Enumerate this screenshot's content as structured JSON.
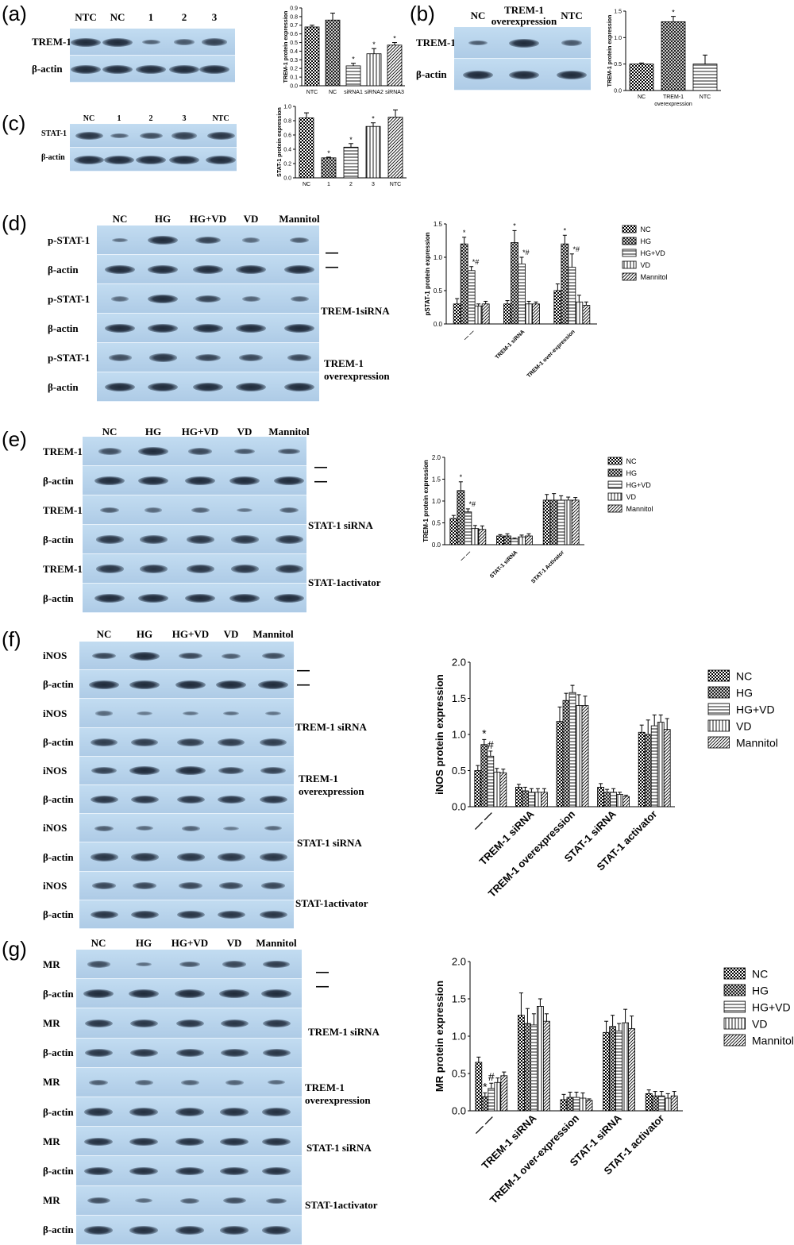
{
  "panels": {
    "a": {
      "letter": "(a)",
      "lanes": [
        "NTC",
        "NC",
        "1",
        "2",
        "3"
      ],
      "rows": [
        "TREM-1",
        "β-actin"
      ]
    },
    "b": {
      "letter": "(b)",
      "lanes": [
        "NC",
        "TREM-1 overexpression",
        "NTC"
      ],
      "rows": [
        "TREM-1",
        "β-actin"
      ]
    },
    "c": {
      "letter": "(c)",
      "lanes": [
        "NC",
        "1",
        "2",
        "3",
        "NTC"
      ],
      "rows": [
        "STAT-1",
        "β-actin"
      ]
    },
    "d": {
      "letter": "(d)",
      "lanes": [
        "NC",
        "HG",
        "HG+VD",
        "VD",
        "Mannitol"
      ],
      "rows": [
        "p-STAT-1",
        "β-actin",
        "p-STAT-1",
        "β-actin",
        "p-STAT-1",
        "β-actin"
      ],
      "groups": [
        "— —",
        "TREM-1siRNA",
        "TREM-1 overexpression"
      ]
    },
    "e": {
      "letter": "(e)",
      "lanes": [
        "NC",
        "HG",
        "HG+VD",
        "VD",
        "Mannitol"
      ],
      "rows": [
        "TREM-1",
        "β-actin",
        "TREM-1",
        "β-actin",
        "TREM-1",
        "β-actin"
      ],
      "groups": [
        "— —",
        "STAT-1 siRNA",
        "STAT-1activator"
      ]
    },
    "f": {
      "letter": "(f)",
      "lanes": [
        "NC",
        "HG",
        "HG+VD",
        "VD",
        "Mannitol"
      ],
      "rows": [
        "iNOS",
        "β-actin",
        "iNOS",
        "β-actin",
        "iNOS",
        "β-actin",
        "iNOS",
        "β-actin",
        "iNOS",
        "β-actin"
      ],
      "groups": [
        "— —",
        "TREM-1 siRNA",
        "TREM-1 overexpression",
        "STAT-1 siRNA",
        "STAT-1activator"
      ]
    },
    "g": {
      "letter": "(g)",
      "lanes": [
        "NC",
        "HG",
        "HG+VD",
        "VD",
        "Mannitol"
      ],
      "rows": [
        "MR",
        "β-actin",
        "MR",
        "β-actin",
        "MR",
        "β-actin",
        "MR",
        "β-actin",
        "MR",
        "β-actin"
      ],
      "groups": [
        "— —",
        "TREM-1 siRNA",
        "TREM-1 overexpression",
        "STAT-1 siRNA",
        "STAT-1activator"
      ]
    }
  },
  "chart_data": [
    {
      "id": "a",
      "type": "bar",
      "ylabel": "TREM-1 protein expression",
      "ylim": [
        0,
        0.9
      ],
      "yticks": [
        "0.0",
        "0.1",
        "0.2",
        "0.3",
        "0.4",
        "0.5",
        "0.6",
        "0.7",
        "0.8",
        "0.9"
      ],
      "categories": [
        "NTC",
        "NC",
        "siRNA1",
        "siRNA2",
        "siRNA3"
      ],
      "values": [
        0.68,
        0.76,
        0.23,
        0.37,
        0.47
      ],
      "errors": [
        0.02,
        0.08,
        0.03,
        0.06,
        0.03
      ],
      "marks": [
        "",
        "",
        "*",
        "*",
        "*"
      ]
    },
    {
      "id": "b",
      "type": "bar",
      "ylabel": "TREM-1 protein expression",
      "ylim": [
        0,
        1.5
      ],
      "yticks": [
        "0.0",
        "0.5",
        "1.0",
        "1.5"
      ],
      "categories": [
        "NC",
        "TREM-1 overexpression",
        "NTC"
      ],
      "values": [
        0.5,
        1.3,
        0.5
      ],
      "errors": [
        0.02,
        0.1,
        0.17
      ],
      "marks": [
        "",
        "*",
        ""
      ]
    },
    {
      "id": "c",
      "type": "bar",
      "ylabel": "STAT-1 protein expression",
      "ylim": [
        0,
        1.0
      ],
      "yticks": [
        "0.0",
        "0.2",
        "0.4",
        "0.6",
        "0.8",
        "1.0"
      ],
      "categories": [
        "NC",
        "1",
        "2",
        "3",
        "NTC"
      ],
      "values": [
        0.84,
        0.28,
        0.43,
        0.72,
        0.85
      ],
      "errors": [
        0.07,
        0.01,
        0.05,
        0.05,
        0.1
      ],
      "marks": [
        "",
        "*",
        "*",
        "*",
        ""
      ]
    },
    {
      "id": "d",
      "type": "bar",
      "ylabel": "pSTAT-1 protein expression",
      "ylim": [
        0,
        1.5
      ],
      "yticks": [
        "0.0",
        "0.5",
        "1.0",
        "1.5"
      ],
      "categories": [
        "— —",
        "TREM-1 siRNA",
        "TREM-1 over-expression"
      ],
      "series": [
        {
          "name": "NC",
          "values": [
            0.3,
            0.3,
            0.5
          ],
          "errors": [
            0.08,
            0.05,
            0.1
          ]
        },
        {
          "name": "HG",
          "values": [
            1.2,
            1.22,
            1.2
          ],
          "errors": [
            0.1,
            0.18,
            0.13
          ]
        },
        {
          "name": "HG+VD",
          "values": [
            0.8,
            0.9,
            0.85
          ],
          "errors": [
            0.06,
            0.1,
            0.2
          ]
        },
        {
          "name": "VD",
          "values": [
            0.27,
            0.3,
            0.33
          ],
          "errors": [
            0.03,
            0.04,
            0.1
          ]
        },
        {
          "name": "Mannitol",
          "values": [
            0.3,
            0.3,
            0.28
          ],
          "errors": [
            0.04,
            0.03,
            0.05
          ]
        }
      ],
      "marks": [
        [
          "",
          "*",
          "*#",
          "",
          ""
        ],
        [
          "",
          "*",
          "*#",
          "",
          ""
        ],
        [
          "",
          "*",
          "*#",
          "",
          ""
        ]
      ]
    },
    {
      "id": "e",
      "type": "bar",
      "ylabel": "TREM-1 protein expression",
      "ylim": [
        0,
        2.0
      ],
      "yticks": [
        "0.0",
        "0.5",
        "1.0",
        "1.5",
        "2.0"
      ],
      "categories": [
        "— —",
        "STAT-1 siRNA",
        "STAT-1 Activator"
      ],
      "series": [
        {
          "name": "NC",
          "values": [
            0.6,
            0.2,
            1.02
          ],
          "errors": [
            0.07,
            0.03,
            0.13
          ]
        },
        {
          "name": "HG",
          "values": [
            1.24,
            0.2,
            1.02
          ],
          "errors": [
            0.2,
            0.05,
            0.15
          ]
        },
        {
          "name": "HG+VD",
          "values": [
            0.75,
            0.13,
            1.02
          ],
          "errors": [
            0.07,
            0.02,
            0.1
          ]
        },
        {
          "name": "VD",
          "values": [
            0.37,
            0.18,
            1.02
          ],
          "errors": [
            0.07,
            0.04,
            0.07
          ]
        },
        {
          "name": "Mannitol",
          "values": [
            0.35,
            0.2,
            1.02
          ],
          "errors": [
            0.08,
            0.05,
            0.06
          ]
        }
      ],
      "marks": [
        [
          "",
          "*",
          "*#",
          "",
          ""
        ],
        [
          "",
          "",
          "",
          "",
          ""
        ],
        [
          "",
          "",
          "",
          "",
          ""
        ]
      ]
    },
    {
      "id": "f",
      "type": "bar",
      "ylabel": "iNOS protein expression",
      "ylim": [
        0,
        2.0
      ],
      "yticks": [
        "0.0",
        "0.5",
        "1.0",
        "1.5",
        "2.0"
      ],
      "categories": [
        "— —",
        "TREM-1 siRNA",
        "TREM-1 overexpression",
        "STAT-1 siRNA",
        "STAT-1 activator"
      ],
      "series": [
        {
          "name": "NC",
          "values": [
            0.5,
            0.27,
            1.18,
            0.27,
            1.03
          ],
          "errors": [
            0.07,
            0.04,
            0.2,
            0.05,
            0.1
          ]
        },
        {
          "name": "HG",
          "values": [
            0.86,
            0.22,
            1.47,
            0.2,
            1.0
          ],
          "errors": [
            0.07,
            0.05,
            0.1,
            0.04,
            0.2
          ]
        },
        {
          "name": "HG+VD",
          "values": [
            0.7,
            0.2,
            1.58,
            0.2,
            1.12
          ],
          "errors": [
            0.07,
            0.05,
            0.1,
            0.05,
            0.15
          ]
        },
        {
          "name": "VD",
          "values": [
            0.48,
            0.2,
            1.4,
            0.17,
            1.17
          ],
          "errors": [
            0.05,
            0.05,
            0.15,
            0.03,
            0.1
          ]
        },
        {
          "name": "Mannitol",
          "values": [
            0.47,
            0.2,
            1.4,
            0.14,
            1.07
          ],
          "errors": [
            0.05,
            0.05,
            0.13,
            0.02,
            0.15
          ]
        }
      ],
      "marks": [
        [
          "",
          "*",
          "#",
          "",
          ""
        ],
        [
          "",
          "",
          "",
          "",
          ""
        ],
        [
          "",
          "",
          "",
          "",
          ""
        ],
        [
          "",
          "",
          "",
          "",
          ""
        ],
        [
          "",
          "",
          "",
          "",
          ""
        ]
      ]
    },
    {
      "id": "g",
      "type": "bar",
      "ylabel": "MR protein expression",
      "ylim": [
        0,
        2.0
      ],
      "yticks": [
        "0.0",
        "0.5",
        "1.0",
        "1.5",
        "2.0"
      ],
      "categories": [
        "— —",
        "TREM-1 siRNA",
        "TREM-1 over-expression",
        "STAT-1 siRNA",
        "STAT-1 activator"
      ],
      "series": [
        {
          "name": "NC",
          "values": [
            0.65,
            1.28,
            0.15,
            1.05,
            0.23
          ],
          "errors": [
            0.07,
            0.3,
            0.07,
            0.15,
            0.05
          ]
        },
        {
          "name": "HG",
          "values": [
            0.19,
            1.17,
            0.18,
            1.13,
            0.2
          ],
          "errors": [
            0.05,
            0.2,
            0.07,
            0.15,
            0.06
          ]
        },
        {
          "name": "HG+VD",
          "values": [
            0.3,
            1.15,
            0.18,
            1.07,
            0.2
          ],
          "errors": [
            0.07,
            0.15,
            0.07,
            0.1,
            0.06
          ]
        },
        {
          "name": "VD",
          "values": [
            0.38,
            1.4,
            0.17,
            1.18,
            0.17
          ],
          "errors": [
            0.06,
            0.1,
            0.07,
            0.18,
            0.06
          ]
        },
        {
          "name": "Mannitol",
          "values": [
            0.47,
            1.2,
            0.14,
            1.1,
            0.2
          ],
          "errors": [
            0.05,
            0.1,
            0.02,
            0.17,
            0.06
          ]
        }
      ],
      "marks": [
        [
          "",
          "*",
          "#",
          "",
          ""
        ],
        [
          "",
          "",
          "",
          "",
          ""
        ],
        [
          "",
          "",
          "",
          "",
          ""
        ],
        [
          "",
          "",
          "",
          "",
          ""
        ],
        [
          "",
          "",
          "",
          "",
          ""
        ]
      ]
    }
  ]
}
